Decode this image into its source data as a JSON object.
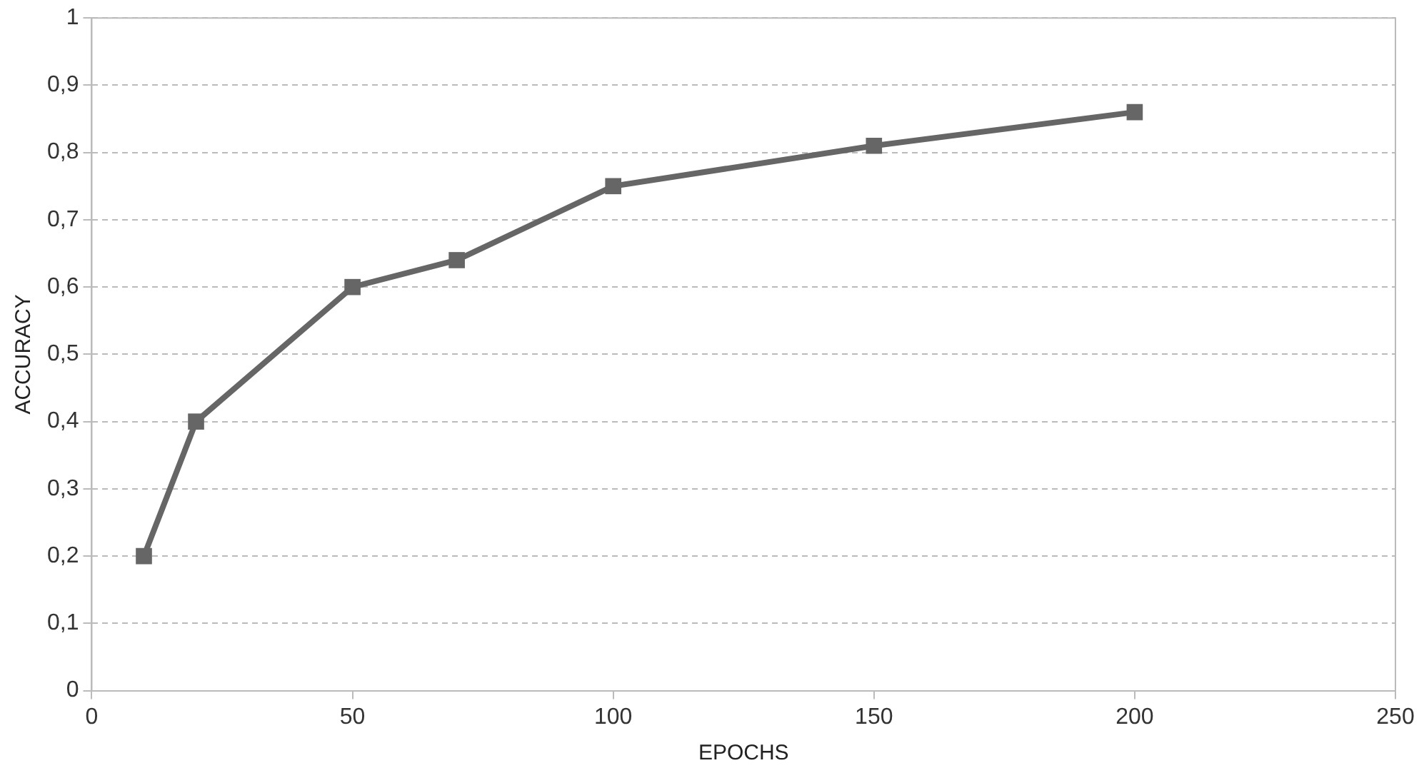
{
  "chart_data": {
    "type": "line",
    "xlabel": "EPOCHS",
    "ylabel": "ACCURACY",
    "x": [
      10,
      20,
      50,
      70,
      100,
      150,
      200
    ],
    "series": [
      {
        "color": "#666666",
        "values": [
          0.2,
          0.4,
          0.6,
          0.64,
          0.75,
          0.81,
          0.86
        ]
      }
    ],
    "xlim": [
      0,
      250
    ],
    "xticks": [
      0,
      50,
      100,
      150,
      200,
      250
    ],
    "ylim": [
      0,
      1
    ],
    "yticks": [
      0,
      {
        "value": 0.1,
        "label": "0,1"
      },
      {
        "value": 0.2,
        "label": "0,2"
      },
      {
        "value": 0.3,
        "label": "0,3"
      },
      {
        "value": 0.4,
        "label": "0,4"
      },
      {
        "value": 0.5,
        "label": "0,5"
      },
      {
        "value": 0.6,
        "label": "0,6"
      },
      {
        "value": 0.7,
        "label": "0,7"
      },
      {
        "value": 0.8,
        "label": "0,8"
      },
      {
        "value": 0.9,
        "label": "0,9"
      },
      1
    ],
    "grid": "y",
    "marker": "square",
    "line_style": "solid",
    "legend": false
  }
}
